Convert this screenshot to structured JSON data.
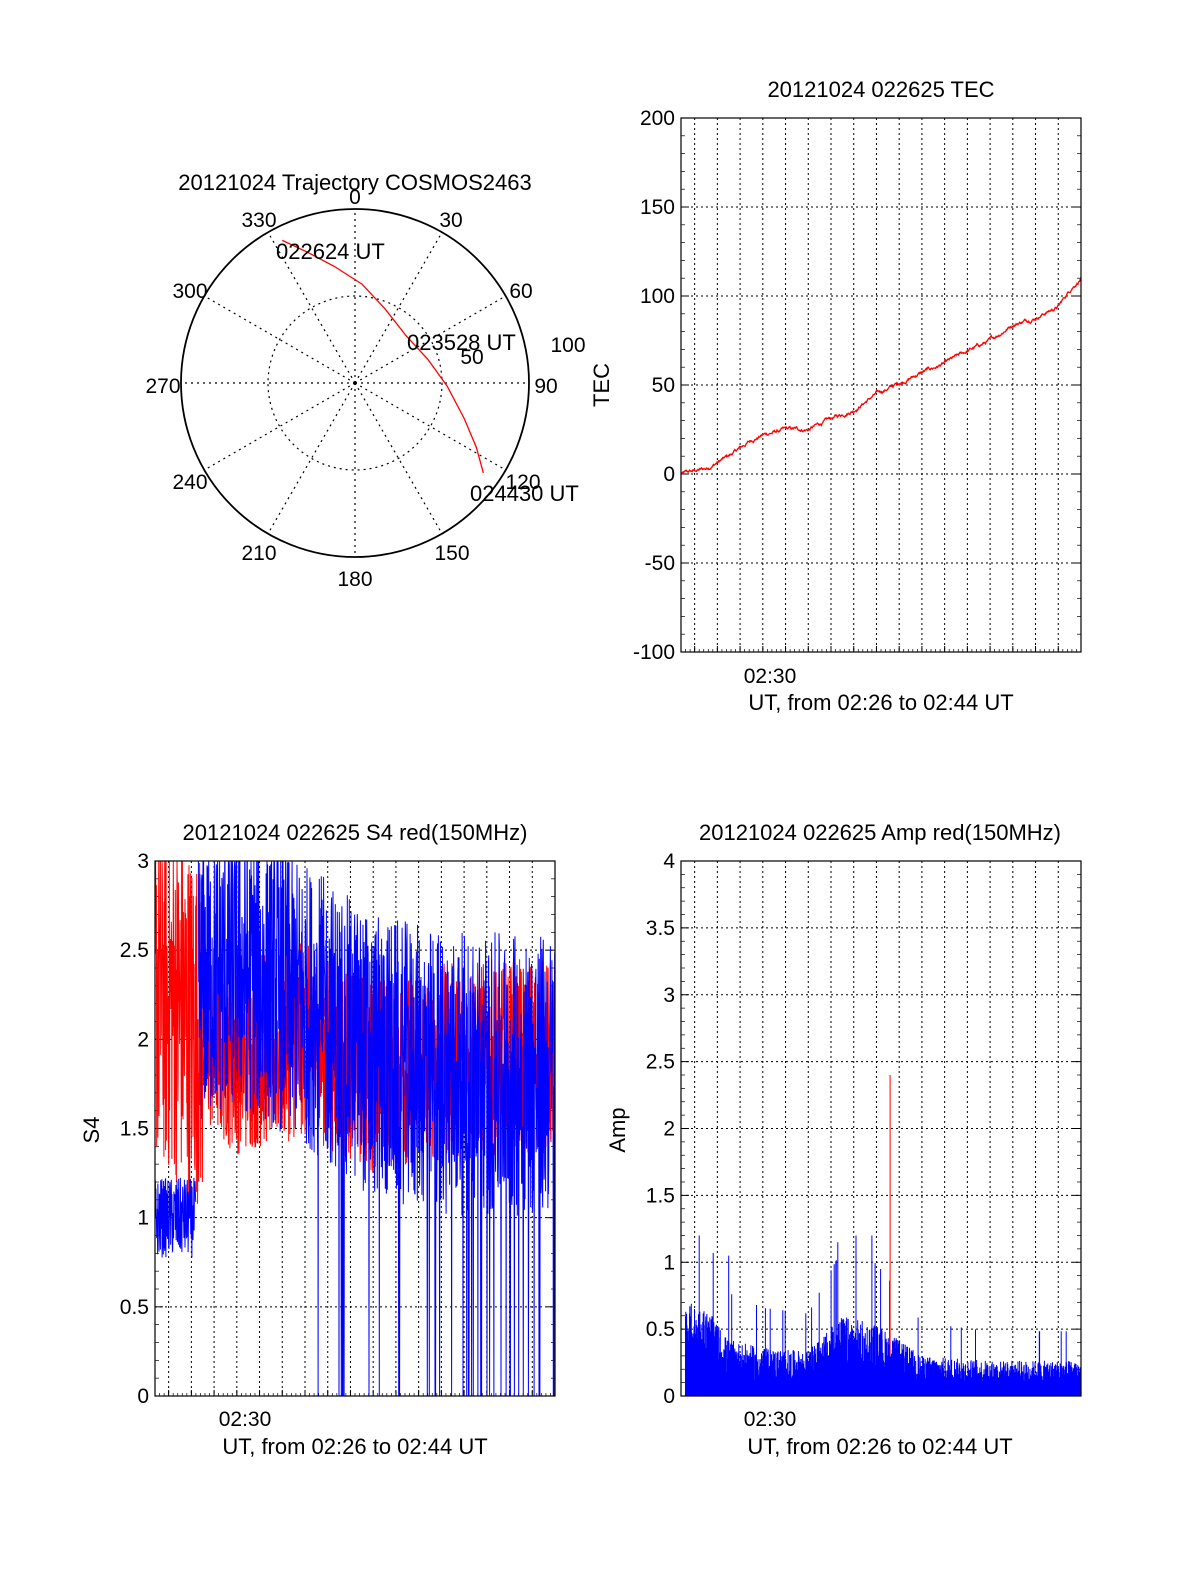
{
  "chart_data": [
    {
      "type": "polar",
      "title": "20121024 Trajectory COSMOS2463",
      "azimuth_labels": [
        "0",
        "30",
        "60",
        "90",
        "120",
        "150",
        "180",
        "210",
        "240",
        "270",
        "300",
        "330"
      ],
      "radial_labels": [
        "50",
        "100"
      ],
      "annotations": [
        "022624 UT",
        "023528 UT",
        "024430 UT"
      ],
      "trajectory": {
        "color": "#ff0000",
        "points": [
          {
            "az": 333,
            "r": 92
          },
          {
            "az": 340,
            "r": 80
          },
          {
            "az": 350,
            "r": 68
          },
          {
            "az": 4,
            "r": 57
          },
          {
            "az": 22,
            "r": 46
          },
          {
            "az": 47,
            "r": 40
          },
          {
            "az": 72,
            "r": 44
          },
          {
            "az": 92,
            "r": 53
          },
          {
            "az": 108,
            "r": 66
          },
          {
            "az": 118,
            "r": 79
          },
          {
            "az": 125,
            "r": 90
          }
        ]
      }
    },
    {
      "type": "line",
      "title": "20121024 022625 TEC",
      "ylabel": "TEC",
      "xlabel": "UT, from 02:26 to 02:44 UT",
      "x_tick_label": "02:30",
      "ylim": [
        -100,
        200
      ],
      "yticks": [
        "200",
        "150",
        "100",
        "50",
        "0",
        "-50",
        "-100"
      ],
      "series": [
        {
          "color": "#ff0000",
          "x_min": [
            26.4,
            27.5,
            28.5,
            29.5,
            30.0,
            31.0,
            32.0,
            33.0,
            34.0,
            35.0,
            36.0,
            37.0,
            38.0,
            39.0,
            40.0,
            41.0,
            42.0,
            43.0,
            43.6,
            44.0
          ],
          "values": [
            0,
            3,
            10,
            19,
            22,
            25,
            25,
            31,
            36,
            45,
            51,
            57,
            62,
            69,
            75,
            84,
            88,
            94,
            105,
            110
          ]
        }
      ]
    },
    {
      "type": "line",
      "title": "20121024 022625 S4 red(150MHz)",
      "ylabel": "S4",
      "xlabel": "UT, from 02:26 to 02:44 UT",
      "x_tick_label": "02:30",
      "ylim": [
        0,
        3
      ],
      "yticks": [
        "3",
        "2.5",
        "2",
        "1.5",
        "1",
        "0.5",
        "0"
      ],
      "series": [
        {
          "color": "#ff0000",
          "x_min": [
            26.4,
            28.0,
            30.0,
            33.0,
            36.0,
            40.0,
            44.0
          ],
          "values": [
            2.3,
            2.1,
            1.9,
            2.0,
            1.8,
            1.9,
            1.9
          ]
        },
        {
          "color": "#0000ff",
          "x_min": [
            26.4,
            27.5,
            28.2,
            30.0,
            33.0,
            36.0,
            40.0,
            44.0
          ],
          "values": [
            1.0,
            0.95,
            2.3,
            2.4,
            2.2,
            1.9,
            1.8,
            1.8
          ]
        }
      ]
    },
    {
      "type": "line",
      "title": "20121024 022625 Amp red(150MHz)",
      "ylabel": "Amp",
      "xlabel": "UT, from 02:26 to 02:44 UT",
      "x_tick_label": "02:30",
      "ylim": [
        0,
        4
      ],
      "yticks": [
        "4",
        "3.5",
        "3",
        "2.5",
        "2",
        "1.5",
        "1",
        "0.5",
        "0"
      ],
      "series": [
        {
          "color": "#0000ff",
          "x_min": [
            26.4,
            27.5,
            28.5,
            30.0,
            32.0,
            33.5,
            35.0,
            37.0,
            40.0,
            44.0
          ],
          "values": [
            0.6,
            0.55,
            0.35,
            0.3,
            0.28,
            0.5,
            0.45,
            0.25,
            0.22,
            0.22
          ]
        },
        {
          "color": "#ff0000",
          "x_min": [
            35.6
          ],
          "values": [
            2.4
          ]
        }
      ]
    }
  ]
}
